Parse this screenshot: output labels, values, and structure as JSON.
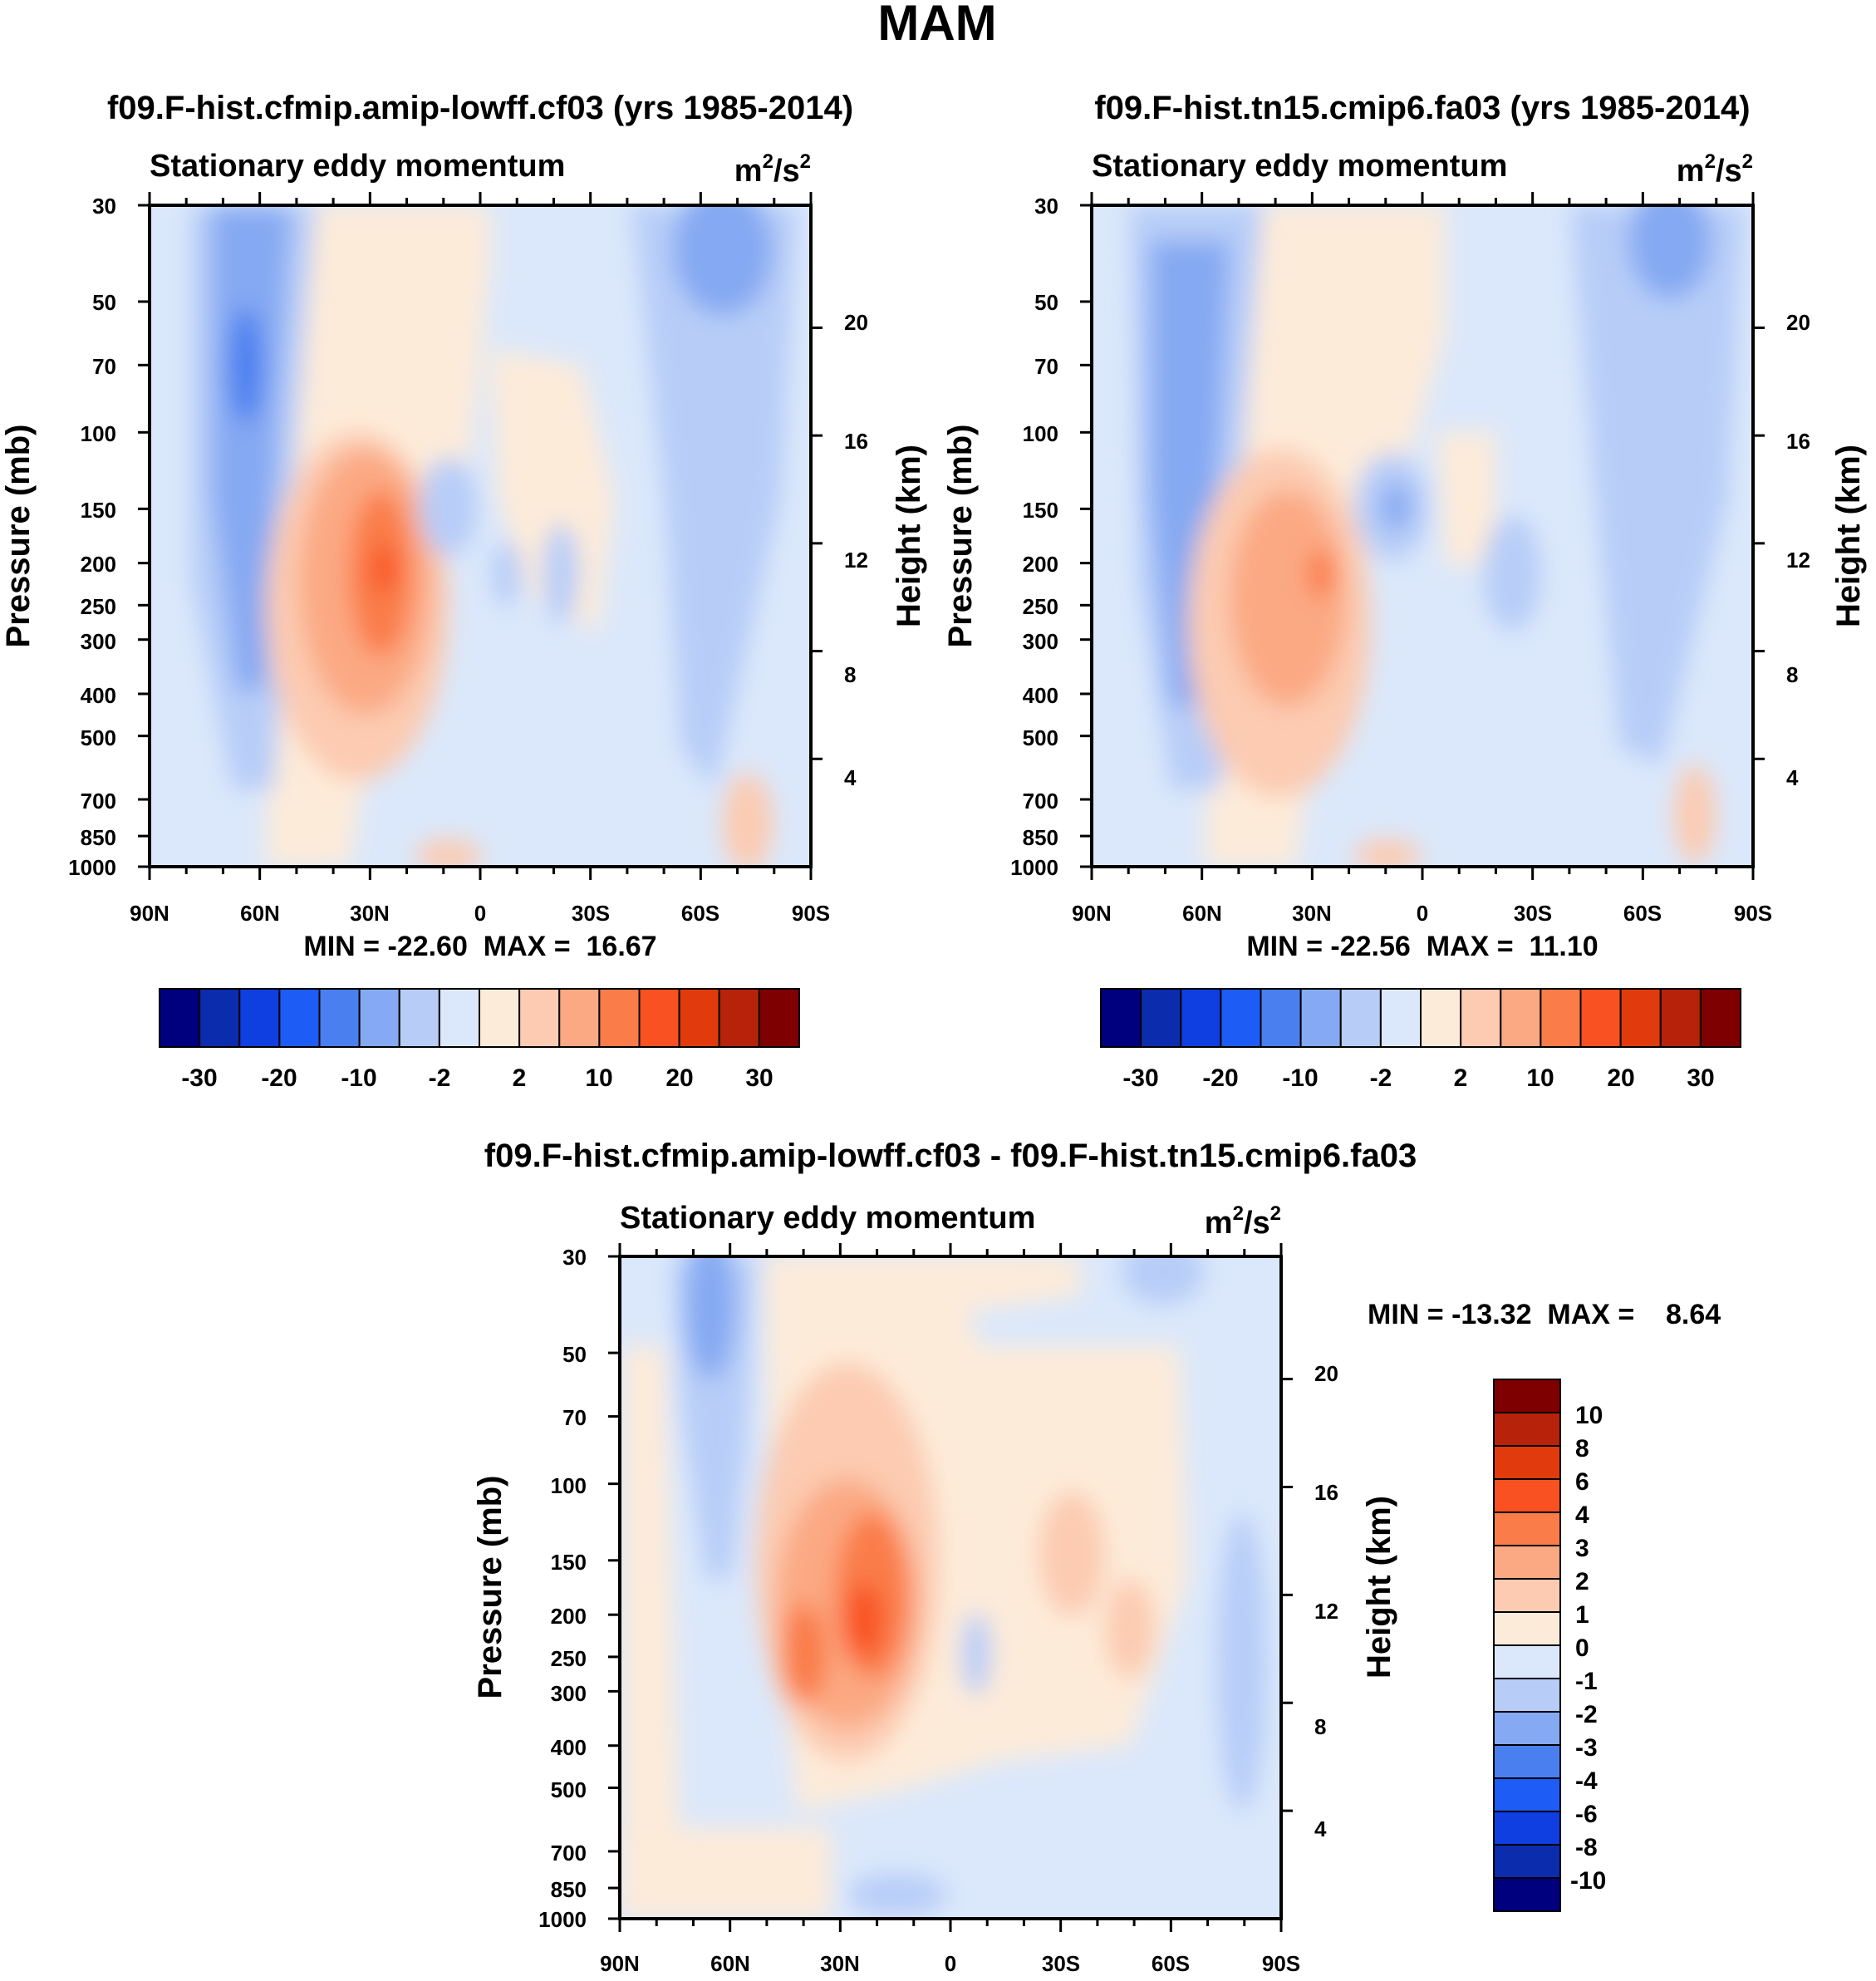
{
  "figure_title": "MAM",
  "colors": {
    "abs_scale": [
      "#00007f",
      "#0c2cae",
      "#0f3ee1",
      "#1d5cf5",
      "#4a7ff0",
      "#85a9f2",
      "#b7cdf8",
      "#dbe8fb",
      "#fdebd9",
      "#fccbb1",
      "#fba983",
      "#fa7d49",
      "#fa5122",
      "#e13b0d",
      "#b6230a",
      "#7f0000"
    ],
    "diff_scale": [
      "#00007f",
      "#0c2cae",
      "#0f3ee1",
      "#1d5cf5",
      "#4a7ff0",
      "#85a9f2",
      "#b7cdf8",
      "#dbe8fb",
      "#fdebd9",
      "#fccbb1",
      "#fba983",
      "#fa7d49",
      "#fa5122",
      "#e13b0d",
      "#b6230a",
      "#7f0000"
    ]
  },
  "chart_data": [
    {
      "type": "heatmap",
      "title": "f09.F-hist.cfmip.amip-lowff.cf03 (yrs 1985-2014)",
      "subtitle": "Stationary eddy momentum",
      "units": {
        "pre": "m",
        "sup1": "2",
        "mid": "/s",
        "sup2": "2"
      },
      "ylabel": "Pressure (mb)",
      "y2label": "Height (km)",
      "xticks": [
        "90N",
        "60N",
        "30N",
        "0",
        "30S",
        "60S",
        "90S"
      ],
      "xlim": [
        90,
        -90
      ],
      "yticks": [
        "30",
        "50",
        "70",
        "100",
        "150",
        "200",
        "250",
        "300",
        "400",
        "500",
        "700",
        "850",
        "1000"
      ],
      "ylim": [
        1000,
        30
      ],
      "y2ticks": [
        "20",
        "16",
        "12",
        "8",
        "4"
      ],
      "minmax": "MIN = -22.60  MAX =  16.67",
      "colorbar_labels": [
        "-30",
        "-20",
        "-10",
        "-2",
        "2",
        "10",
        "20",
        "30"
      ],
      "features": [
        {
          "lat": 66,
          "p": 70,
          "value": -22.6,
          "desc": "stratospheric negative core"
        },
        {
          "lat": 70,
          "p": 250,
          "value": -8
        },
        {
          "lat": 28,
          "p": 200,
          "value": 16.67,
          "desc": "subtropical positive maximum"
        },
        {
          "lat": 34,
          "p": 280,
          "value": 9
        },
        {
          "lat": -2,
          "p": 140,
          "value": -4
        },
        {
          "lat": -22,
          "p": 230,
          "value": -3
        },
        {
          "lat": -60,
          "p": 40,
          "value": -9
        },
        {
          "lat": -58,
          "p": 300,
          "value": -4
        },
        {
          "lat": -78,
          "p": 850,
          "value": 3
        }
      ]
    },
    {
      "type": "heatmap",
      "title": "f09.F-hist.tn15.cmip6.fa03 (yrs 1985-2014)",
      "subtitle": "Stationary eddy momentum",
      "units": {
        "pre": "m",
        "sup1": "2",
        "mid": "/s",
        "sup2": "2"
      },
      "ylabel": "Pressure (mb)",
      "y2label": "Height (km)",
      "xticks": [
        "90N",
        "60N",
        "30N",
        "0",
        "30S",
        "60S",
        "90S"
      ],
      "xlim": [
        90,
        -90
      ],
      "yticks": [
        "30",
        "50",
        "70",
        "100",
        "150",
        "200",
        "250",
        "300",
        "400",
        "500",
        "700",
        "850",
        "1000"
      ],
      "ylim": [
        1000,
        30
      ],
      "y2ticks": [
        "20",
        "16",
        "12",
        "8",
        "4"
      ],
      "minmax": "MIN = -22.56  MAX =  11.10",
      "colorbar_labels": [
        "-30",
        "-20",
        "-10",
        "-2",
        "2",
        "10",
        "20",
        "30"
      ],
      "features": [
        {
          "lat": 67,
          "p": 100,
          "value": -14,
          "desc": "high-latitude negative column"
        },
        {
          "lat": 27,
          "p": 200,
          "value": 11.1,
          "desc": "subtropical positive maximum"
        },
        {
          "lat": 34,
          "p": 280,
          "value": 7
        },
        {
          "lat": 0,
          "p": 150,
          "value": -5
        },
        {
          "lat": -30,
          "p": 250,
          "value": -3
        },
        {
          "lat": -63,
          "p": 40,
          "value": -9
        },
        {
          "lat": -58,
          "p": 300,
          "value": -4
        },
        {
          "lat": -78,
          "p": 800,
          "value": 3
        }
      ]
    },
    {
      "type": "heatmap",
      "title": "f09.F-hist.cfmip.amip-lowff.cf03 - f09.F-hist.tn15.cmip6.fa03",
      "subtitle": "Stationary eddy momentum",
      "units": {
        "pre": "m",
        "sup1": "2",
        "mid": "/s",
        "sup2": "2"
      },
      "ylabel": "Pressure (mb)",
      "y2label": "Height (km)",
      "xticks": [
        "90N",
        "60N",
        "30N",
        "0",
        "30S",
        "60S",
        "90S"
      ],
      "xlim": [
        90,
        -90
      ],
      "yticks": [
        "30",
        "50",
        "70",
        "100",
        "150",
        "200",
        "250",
        "300",
        "400",
        "500",
        "700",
        "850",
        "1000"
      ],
      "ylim": [
        1000,
        30
      ],
      "y2ticks": [
        "20",
        "16",
        "12",
        "8",
        "4"
      ],
      "minmax": "MIN = -13.32  MAX =    8.64",
      "colorbar_labels": [
        "10",
        "8",
        "6",
        "4",
        "3",
        "2",
        "1",
        "0",
        "-1",
        "-2",
        "-3",
        "-4",
        "-6",
        "-8",
        "-10"
      ],
      "features": [
        {
          "lat": 64,
          "p": 35,
          "value": -3.5,
          "desc": "stratospheric negative"
        },
        {
          "lat": 26,
          "p": 230,
          "value": 5,
          "desc": "subtropical positive maximum"
        },
        {
          "lat": 38,
          "p": 260,
          "value": 4
        },
        {
          "lat": 18,
          "p": 130,
          "value": 1.5
        },
        {
          "lat": -2,
          "p": 260,
          "value": -2
        },
        {
          "lat": -30,
          "p": 160,
          "value": 1.5
        },
        {
          "lat": -50,
          "p": 230,
          "value": 1
        },
        {
          "lat": -73,
          "p": 300,
          "value": -1.5
        },
        {
          "lat": -6,
          "p": 950,
          "value": -3
        }
      ]
    }
  ]
}
